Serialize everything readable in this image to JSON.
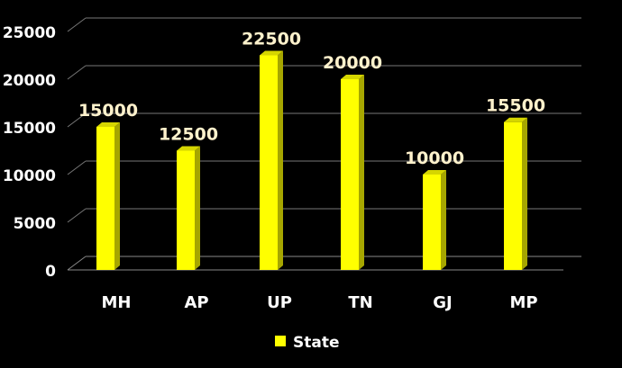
{
  "chart_data": {
    "type": "bar",
    "categories": [
      "MH",
      "AP",
      "UP",
      "TN",
      "GJ",
      "MP"
    ],
    "series": [
      {
        "name": "State",
        "values": [
          15000,
          12500,
          22500,
          20000,
          10000,
          15500
        ]
      }
    ],
    "yticks": [
      "0",
      "5000",
      "10000",
      "15000",
      "20000",
      "25000"
    ],
    "ylim": [
      0,
      25000
    ],
    "grid": true,
    "legend_position": "bottom",
    "data_labels": true,
    "three_d": true,
    "colors": {
      "background": "#000000",
      "bar_front": "#ffff00",
      "bar_side": "#a6a600",
      "bar_top": "#d6d600",
      "gridline": "#777777",
      "floor": "#888888",
      "text": "#ffffff",
      "data_label": "#fff2cc"
    }
  }
}
